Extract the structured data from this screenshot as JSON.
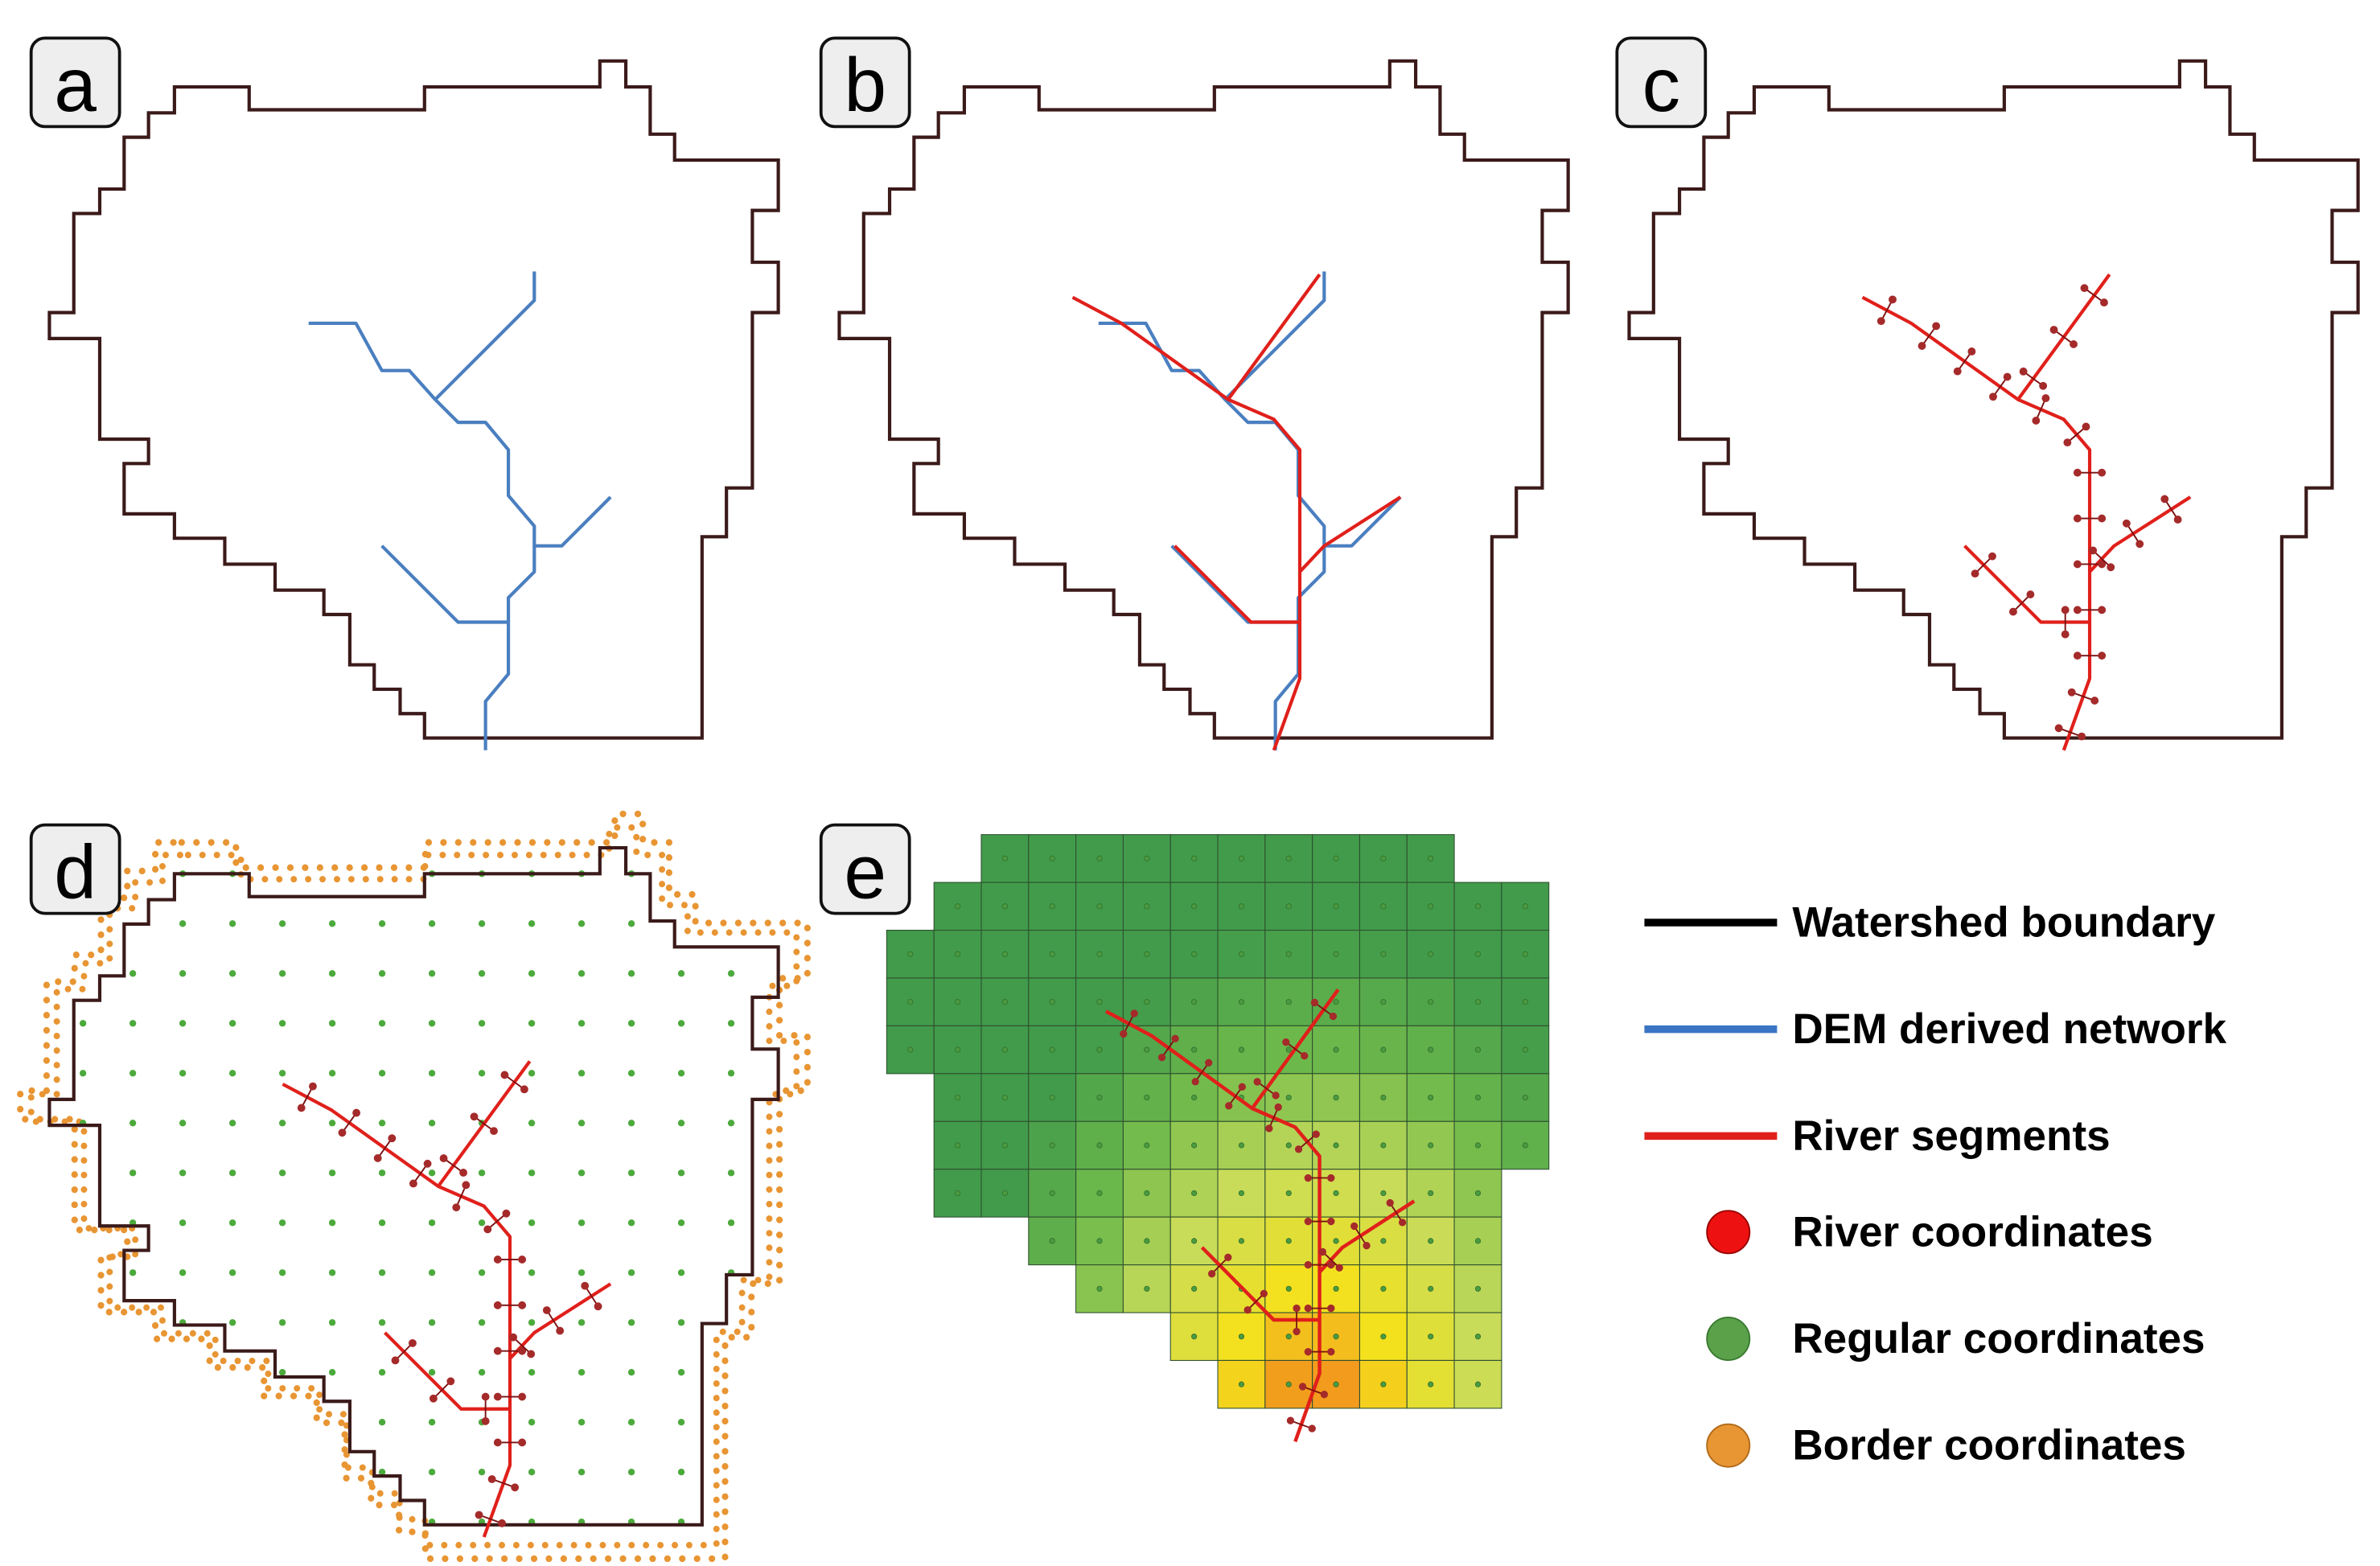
{
  "panels": [
    {
      "label": "a"
    },
    {
      "label": "b"
    },
    {
      "label": "c"
    },
    {
      "label": "d"
    },
    {
      "label": "e"
    }
  ],
  "legend": {
    "items": [
      {
        "label": "Watershed boundary"
      },
      {
        "label": "DEM derived network"
      },
      {
        "label": "River segments"
      },
      {
        "label": "River coordinates"
      },
      {
        "label": "Regular coordinates"
      },
      {
        "label": "Border coordinates"
      }
    ]
  }
}
